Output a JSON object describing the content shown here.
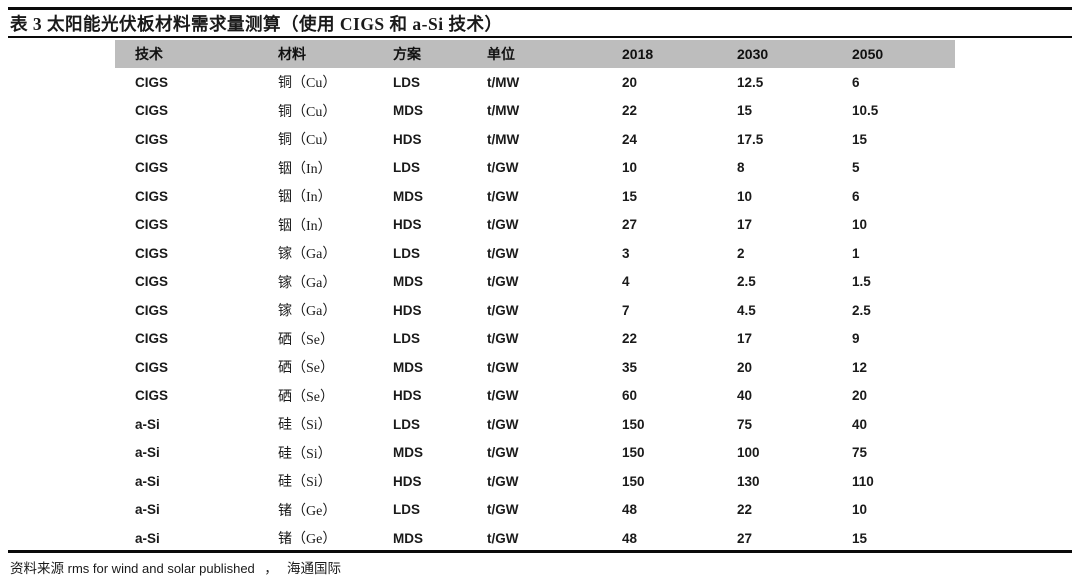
{
  "title": "表 3  太阳能光伏板材料需求量测算（使用 CIGS 和 a-Si 技术）",
  "table": {
    "columns": [
      "技术",
      "材料",
      "方案",
      "单位",
      "2018",
      "2030",
      "2050"
    ],
    "rows": [
      [
        "CIGS",
        "铜（Cu）",
        "LDS",
        "t/MW",
        "20",
        "12.5",
        "6"
      ],
      [
        "CIGS",
        "铜（Cu）",
        "MDS",
        "t/MW",
        "22",
        "15",
        "10.5"
      ],
      [
        "CIGS",
        "铜（Cu）",
        "HDS",
        "t/MW",
        "24",
        "17.5",
        "15"
      ],
      [
        "CIGS",
        "铟（In）",
        "LDS",
        "t/GW",
        "10",
        "8",
        "5"
      ],
      [
        "CIGS",
        "铟（In）",
        "MDS",
        "t/GW",
        "15",
        "10",
        "6"
      ],
      [
        "CIGS",
        "铟（In）",
        "HDS",
        "t/GW",
        "27",
        "17",
        "10"
      ],
      [
        "CIGS",
        "镓（Ga）",
        "LDS",
        "t/GW",
        "3",
        "2",
        "1"
      ],
      [
        "CIGS",
        "镓（Ga）",
        "MDS",
        "t/GW",
        "4",
        "2.5",
        "1.5"
      ],
      [
        "CIGS",
        "镓（Ga）",
        "HDS",
        "t/GW",
        "7",
        "4.5",
        "2.5"
      ],
      [
        "CIGS",
        "硒（Se）",
        "LDS",
        "t/GW",
        "22",
        "17",
        "9"
      ],
      [
        "CIGS",
        "硒（Se）",
        "MDS",
        "t/GW",
        "35",
        "20",
        "12"
      ],
      [
        "CIGS",
        "硒（Se）",
        "HDS",
        "t/GW",
        "60",
        "40",
        "20"
      ],
      [
        "a-Si",
        "硅（Si）",
        "LDS",
        "t/GW",
        "150",
        "75",
        "40"
      ],
      [
        "a-Si",
        "硅（Si）",
        "MDS",
        "t/GW",
        "150",
        "100",
        "75"
      ],
      [
        "a-Si",
        "硅（Si）",
        "HDS",
        "t/GW",
        "150",
        "130",
        "110"
      ],
      [
        "a-Si",
        "锗（Ge）",
        "LDS",
        "t/GW",
        "48",
        "22",
        "10"
      ],
      [
        "a-Si",
        "锗（Ge）",
        "MDS",
        "t/GW",
        "48",
        "27",
        "15"
      ]
    ]
  },
  "footer": {
    "source_label": "资料来源",
    "source_en": "rms for wind and solar published",
    "separator": "，",
    "source_cn": "海通国际"
  },
  "colors": {
    "header_band": "#bdbdbd",
    "text": "#1a1a1a",
    "rule": "#0a0a0a"
  }
}
